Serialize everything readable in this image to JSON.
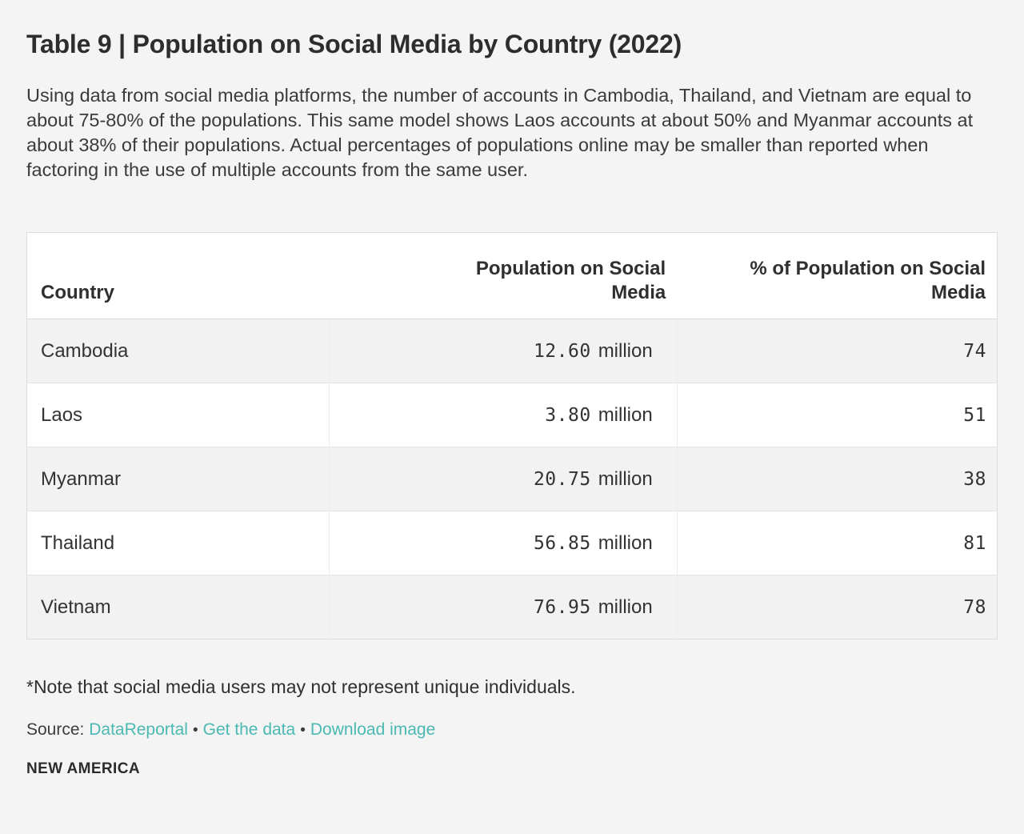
{
  "header": {
    "title": "Table 9 | Population on Social Media by Country (2022)",
    "description": "Using data from social media platforms, the number of accounts in Cambodia, Thailand, and Vietnam are equal to about 75-80% of the populations. This same model shows Laos accounts at about 50% and Myanmar accounts at about 38% of their populations. Actual percentages of populations online may be smaller than reported when factoring in the use of multiple accounts from the same user."
  },
  "table": {
    "columns": [
      {
        "label": "Country"
      },
      {
        "label": "Population on Social Media"
      },
      {
        "label": "% of Population on Social Media"
      }
    ],
    "rows": [
      {
        "country": "Cambodia",
        "population_value": "12.60",
        "population_unit": "million",
        "percent": "74"
      },
      {
        "country": "Laos",
        "population_value": "3.80",
        "population_unit": "million",
        "percent": "51"
      },
      {
        "country": "Myanmar",
        "population_value": "20.75",
        "population_unit": "million",
        "percent": "38"
      },
      {
        "country": "Thailand",
        "population_value": "56.85",
        "population_unit": "million",
        "percent": "81"
      },
      {
        "country": "Vietnam",
        "population_value": "76.95",
        "population_unit": "million",
        "percent": "78"
      }
    ]
  },
  "footer": {
    "note": "*Note that social media users may not represent unique individuals.",
    "source_label": "Source:",
    "links": [
      {
        "label": "DataReportal"
      },
      {
        "label": "Get the data"
      },
      {
        "label": "Download image"
      }
    ],
    "separator": "•",
    "logo": "NEW AMERICA"
  },
  "colors": {
    "page_background": "#f4f4f4",
    "table_background": "#ffffff",
    "row_stripe": "#f2f2f2",
    "border": "#dcdcdc",
    "text_dark": "#2d2d2d",
    "link_teal": "#4bb9b2"
  },
  "chart_data": {
    "type": "table",
    "title": "Table 9 | Population on Social Media by Country (2022)",
    "columns": [
      "Country",
      "Population on Social Media",
      "% of Population on Social Media"
    ],
    "rows": [
      [
        "Cambodia",
        "12.60 million",
        74
      ],
      [
        "Laos",
        "3.80 million",
        51
      ],
      [
        "Myanmar",
        "20.75 million",
        38
      ],
      [
        "Thailand",
        "56.85 million",
        81
      ],
      [
        "Vietnam",
        "76.95 million",
        78
      ]
    ],
    "notes": "*Note that social media users may not represent unique individuals.",
    "source": "DataReportal"
  }
}
